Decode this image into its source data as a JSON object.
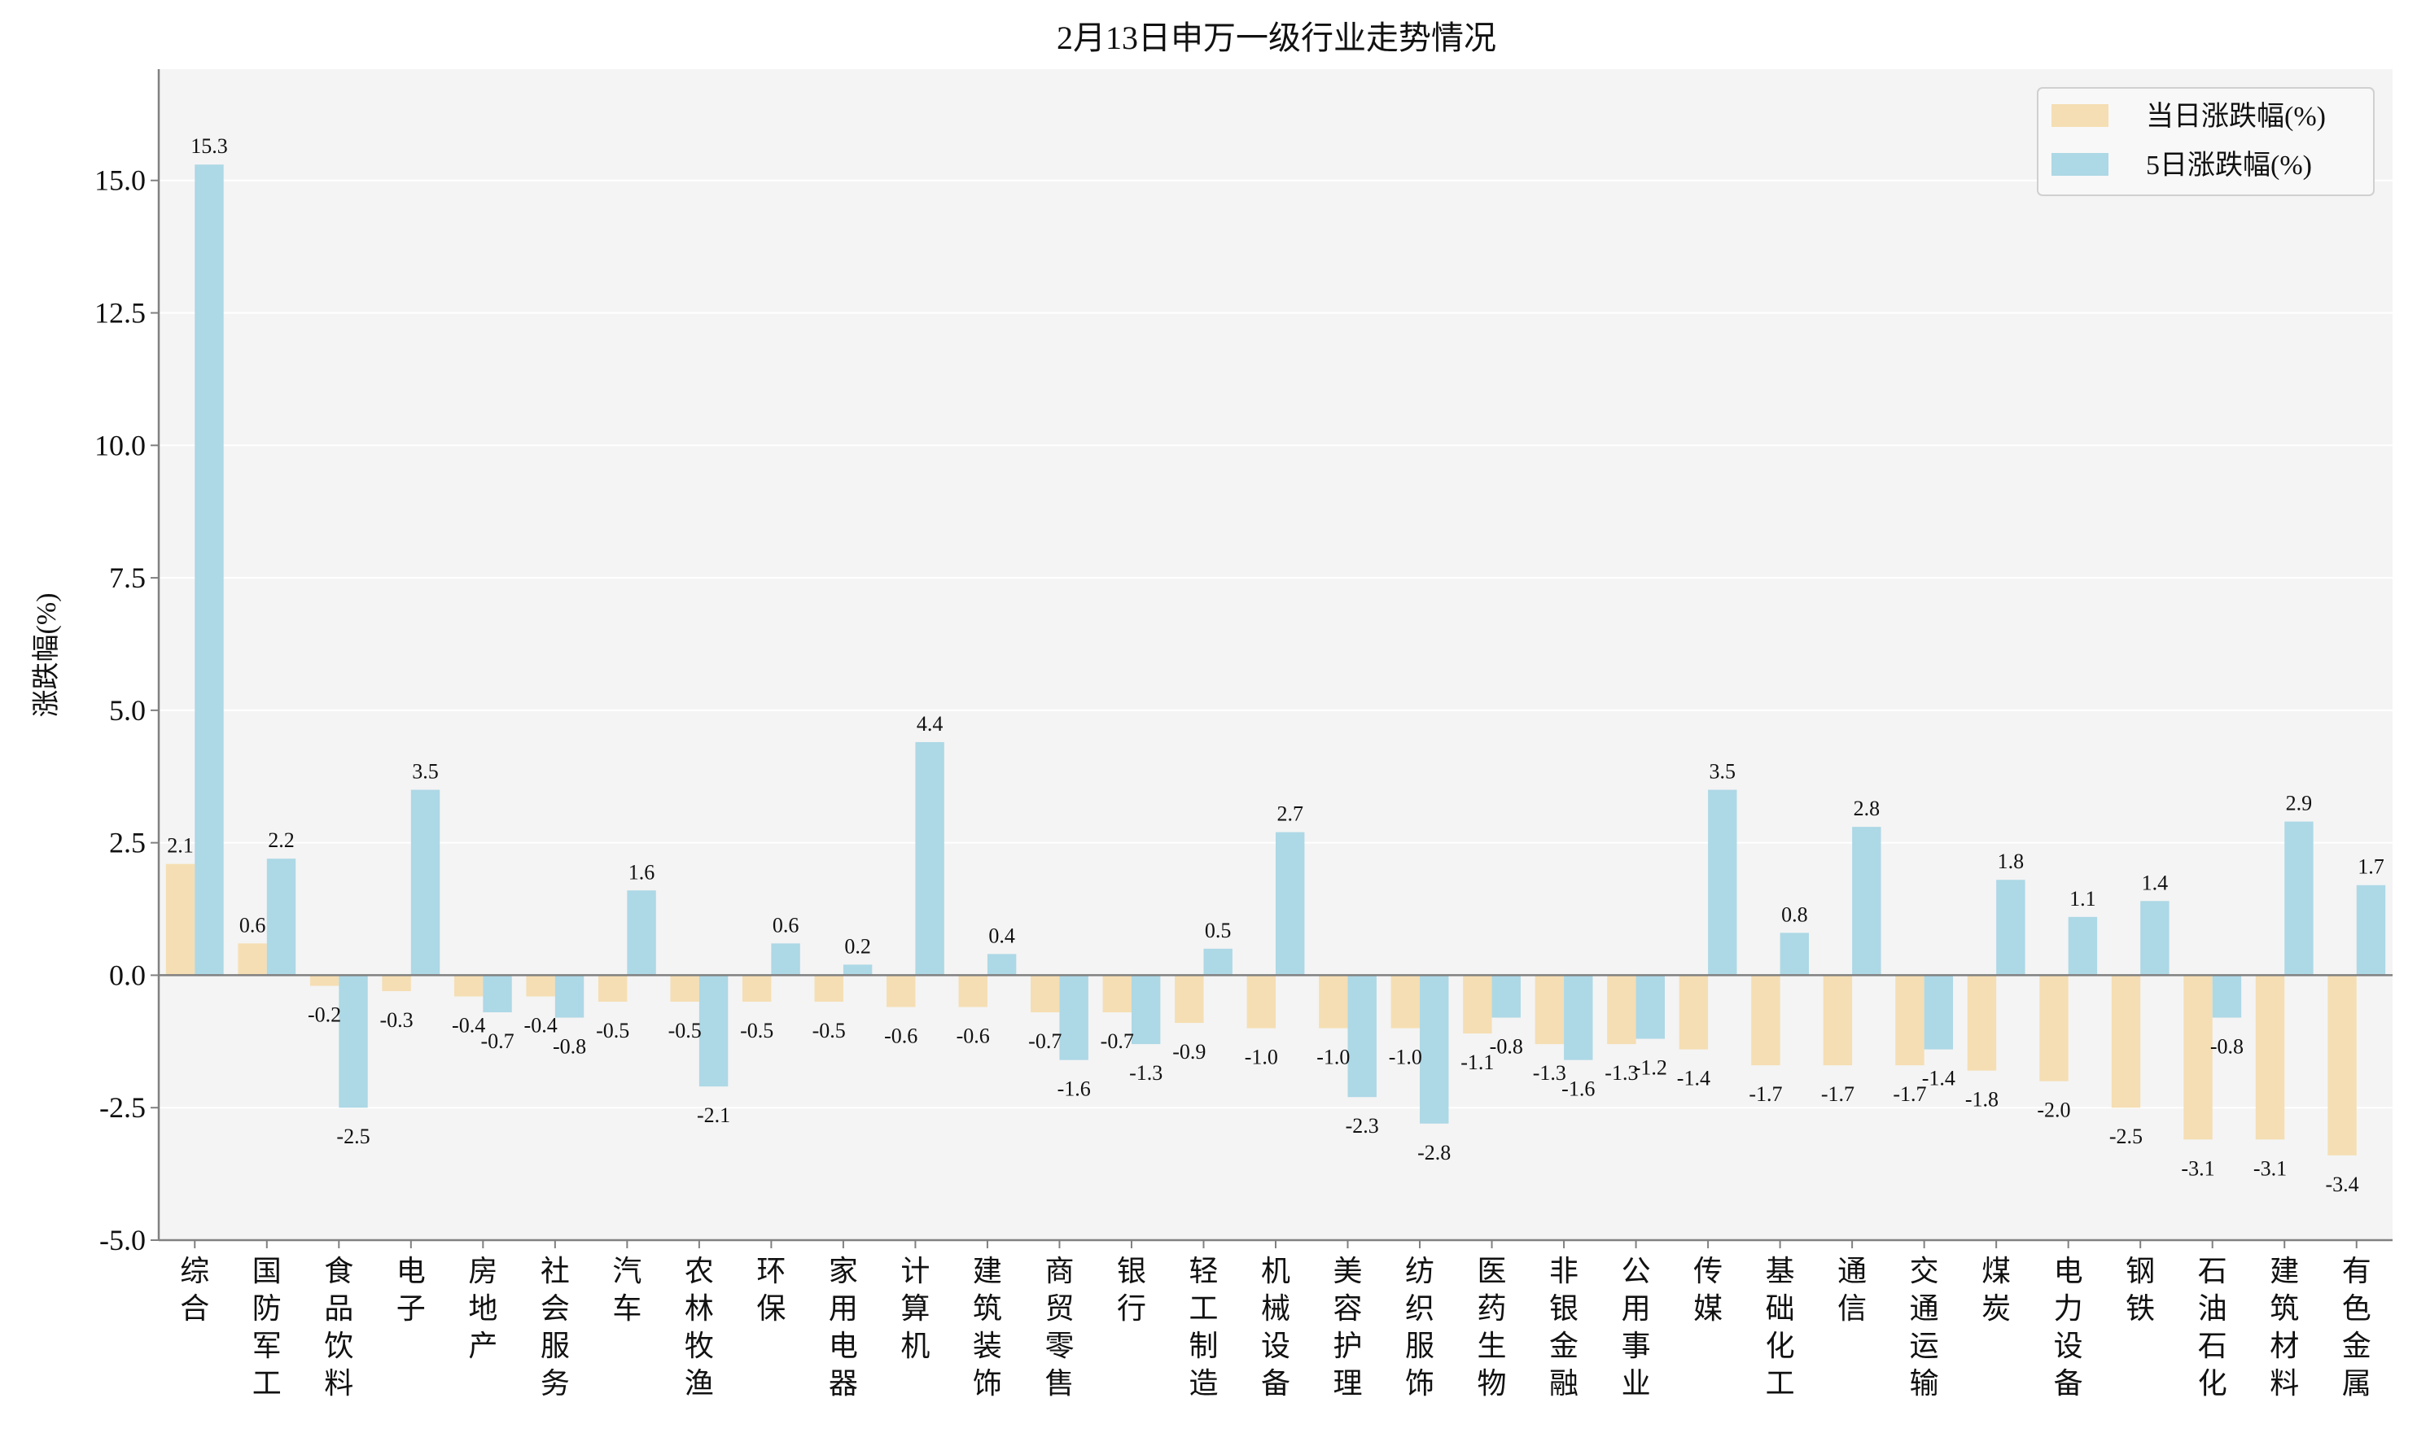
{
  "chart_data": {
    "type": "bar",
    "title": "2月13日申万一级行业走势情况",
    "xlabel": "",
    "ylabel": "涨跌幅(%)",
    "ylim": [
      -5.0,
      17.1
    ],
    "yticks": [
      -5.0,
      -2.5,
      0.0,
      2.5,
      5.0,
      7.5,
      10.0,
      12.5,
      15.0
    ],
    "grid": "horizontal",
    "legend_position": "top-right",
    "categories": [
      "综合",
      "国防军工",
      "食品饮料",
      "电子",
      "房地产",
      "社会服务",
      "汽车",
      "农林牧渔",
      "环保",
      "家用电器",
      "计算机",
      "建筑装饰",
      "商贸零售",
      "银行",
      "轻工制造",
      "机械设备",
      "美容护理",
      "纺织服饰",
      "医药生物",
      "非银金融",
      "公用事业",
      "传媒",
      "基础化工",
      "通信",
      "交通运输",
      "煤炭",
      "电力设备",
      "钢铁",
      "石油石化",
      "建筑材料",
      "有色金属"
    ],
    "series": [
      {
        "name": "当日涨跌幅(%)",
        "color": "#f5deb3",
        "values": [
          2.1,
          0.6,
          -0.2,
          -0.3,
          -0.4,
          -0.4,
          -0.5,
          -0.5,
          -0.5,
          -0.5,
          -0.6,
          -0.6,
          -0.7,
          -0.7,
          -0.9,
          -1.0,
          -1.0,
          -1.0,
          -1.1,
          -1.3,
          -1.3,
          -1.4,
          -1.7,
          -1.7,
          -1.7,
          -1.8,
          -2.0,
          -2.5,
          -3.1,
          -3.1,
          -3.4
        ]
      },
      {
        "name": "5日涨跌幅(%)",
        "color": "#add8e6",
        "values": [
          15.3,
          2.2,
          -2.5,
          3.5,
          -0.7,
          -0.8,
          1.6,
          -2.1,
          0.6,
          0.2,
          4.4,
          0.4,
          -1.6,
          -1.3,
          0.5,
          2.7,
          -2.3,
          -2.8,
          -0.8,
          -1.6,
          -1.2,
          3.5,
          0.8,
          2.8,
          -1.4,
          1.8,
          1.1,
          1.4,
          -0.8,
          2.9,
          1.7
        ]
      }
    ]
  },
  "colors": {
    "plot_background": "#f4f4f4",
    "grid": "#ffffff",
    "axis": "#808080"
  }
}
